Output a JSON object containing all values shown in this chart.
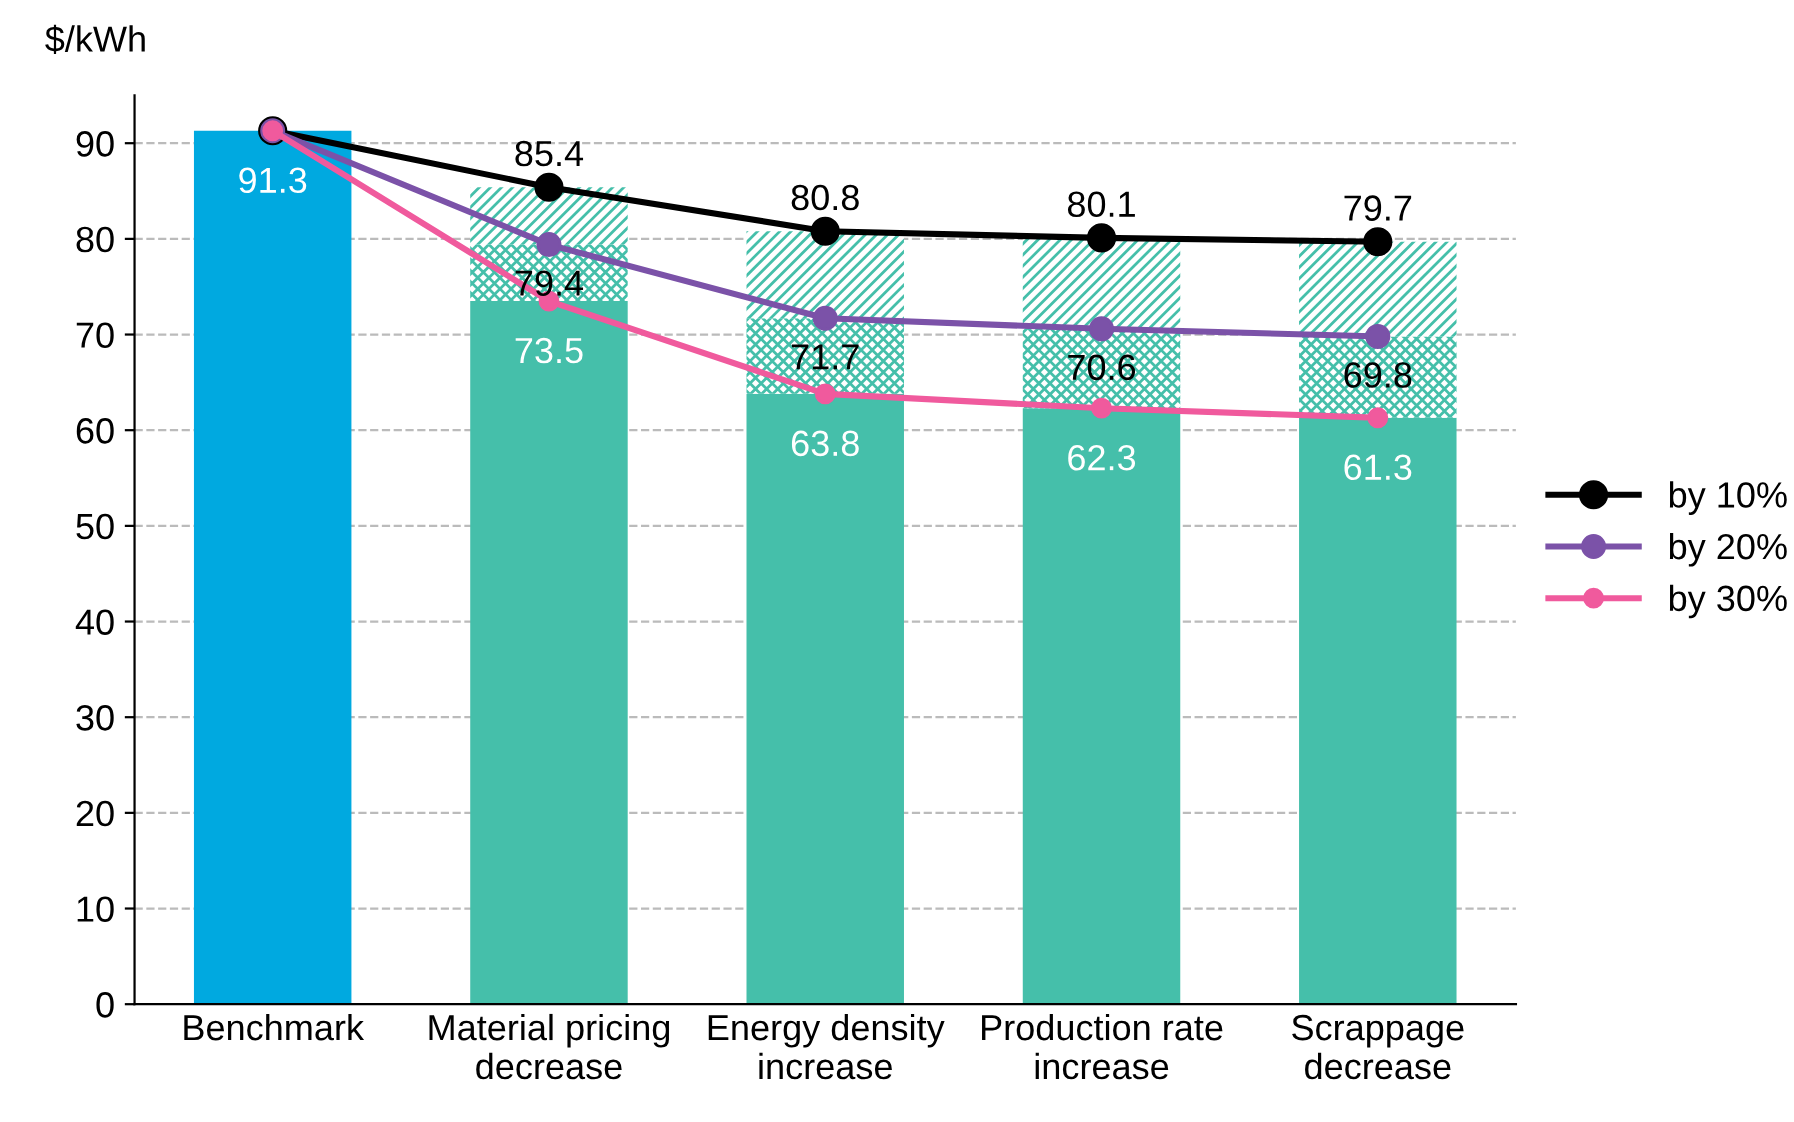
{
  "chart_data": {
    "type": "bar",
    "ylabel": "$/kWh",
    "categories": [
      "Benchmark",
      "Material pricing\ndecrease",
      "Energy density\nincrease",
      "Production rate\nincrease",
      "Scrappage\ndecrease"
    ],
    "stacked": true,
    "ylim": [
      0,
      95
    ],
    "yticks": [
      0,
      10,
      20,
      30,
      40,
      50,
      60,
      70,
      80,
      90
    ],
    "grid": "y",
    "legend": "right",
    "marker": "circle",
    "line_style": "solid",
    "series": [
      {
        "colors": [
          "#00a9e0",
          "#45bfaa",
          "#45bfaa",
          "#45bfaa",
          "#45bfaa"
        ],
        "values": [
          91.3,
          73.5,
          63.8,
          62.3,
          61.3
        ],
        "value_labels": [
          "91.3",
          "73.5",
          "63.8",
          "62.3",
          "61.3"
        ]
      },
      {
        "color": "#45bfaa",
        "values": [
          null,
          5.9,
          7.9,
          8.3,
          8.5
        ]
      },
      {
        "color": "#45bfaa",
        "values": [
          null,
          6.0,
          9.1,
          9.5,
          9.9
        ]
      },
      {
        "type": "line",
        "name": "by 10%",
        "color": "#000000",
        "values": [
          91.3,
          85.4,
          80.8,
          80.1,
          79.7
        ],
        "value_labels": [
          null,
          "85.4",
          "80.8",
          "80.1",
          "79.7"
        ]
      },
      {
        "type": "line",
        "name": "by 20%",
        "color": "#7b52a8",
        "values": [
          91.3,
          79.4,
          71.7,
          70.6,
          69.8
        ],
        "value_labels": [
          null,
          "79.4",
          "71.7",
          "70.6",
          "69.8"
        ]
      },
      {
        "type": "line",
        "name": "by 30%",
        "color": "#f05a9d",
        "values": [
          91.3,
          73.5,
          63.8,
          62.3,
          61.3
        ]
      }
    ]
  }
}
